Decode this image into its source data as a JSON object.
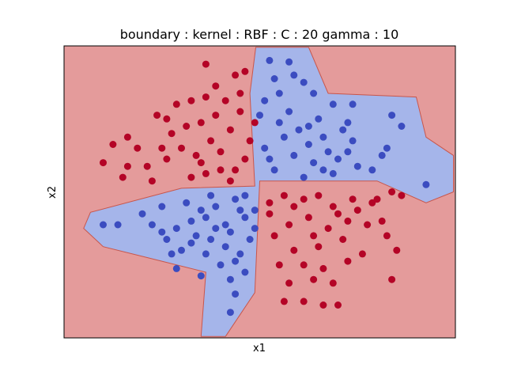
{
  "chart_data": {
    "type": "scatter",
    "title": "boundary : kernel : RBF : C : 20  gamma : 10",
    "xlabel": "x1",
    "ylabel": "x2",
    "xlim": [
      -2.0,
      2.0
    ],
    "ylim": [
      -2.0,
      2.0
    ],
    "grid": false,
    "show_ticks": false,
    "colors": {
      "class_0_point": "#3b4cc0",
      "class_1_point": "#b40426",
      "class_0_region": "#a5b5ea",
      "class_1_region": "#e49b9b",
      "boundary_line": "#c8564c"
    },
    "decision_region_class_0": [
      [
        -0.04,
        1.98
      ],
      [
        0.5,
        1.98
      ],
      [
        0.7,
        1.35
      ],
      [
        1.6,
        1.3
      ],
      [
        1.7,
        0.75
      ],
      [
        1.98,
        0.5
      ],
      [
        1.98,
        0.0
      ],
      [
        1.7,
        -0.15
      ],
      [
        1.2,
        0.15
      ],
      [
        0.0,
        0.15
      ],
      [
        -0.05,
        -1.38
      ],
      [
        -0.35,
        -1.98
      ],
      [
        -0.6,
        -1.98
      ],
      [
        -0.55,
        -1.1
      ],
      [
        -1.15,
        -0.9
      ],
      [
        -1.6,
        -0.75
      ],
      [
        -1.8,
        -0.5
      ],
      [
        -1.73,
        -0.28
      ],
      [
        -0.8,
        0.05
      ],
      [
        -0.05,
        0.08
      ],
      [
        -0.1,
        1.35
      ]
    ],
    "series": [
      {
        "class": 0,
        "points": [
          [
            0.1,
            1.8
          ],
          [
            0.3,
            1.78
          ],
          [
            0.45,
            1.5
          ],
          [
            0.2,
            1.35
          ],
          [
            0.55,
            1.35
          ],
          [
            0.75,
            1.2
          ],
          [
            0.95,
            1.2
          ],
          [
            1.35,
            1.05
          ],
          [
            1.45,
            0.9
          ],
          [
            1.3,
            0.6
          ],
          [
            0.9,
            0.55
          ],
          [
            0.65,
            0.75
          ],
          [
            1.0,
            0.35
          ],
          [
            1.15,
            0.3
          ],
          [
            0.5,
            0.65
          ],
          [
            0.2,
            0.95
          ],
          [
            0.05,
            0.6
          ],
          [
            0.15,
            0.3
          ],
          [
            0.45,
            0.2
          ],
          [
            0.75,
            0.25
          ],
          [
            0.3,
            1.1
          ],
          [
            0.6,
            1.0
          ],
          [
            0.85,
            0.85
          ],
          [
            0.35,
            0.5
          ],
          [
            0.55,
            0.4
          ],
          [
            0.05,
            1.25
          ],
          [
            0.25,
            0.75
          ],
          [
            0.4,
            0.85
          ],
          [
            0.1,
            0.45
          ],
          [
            0.7,
            0.55
          ],
          [
            0.9,
            0.95
          ],
          [
            0.15,
            1.55
          ],
          [
            0.35,
            1.6
          ],
          [
            0.0,
            1.05
          ],
          [
            0.65,
            0.3
          ],
          [
            1.7,
            0.1
          ],
          [
            1.25,
            0.5
          ],
          [
            0.8,
            0.45
          ],
          [
            0.95,
            0.7
          ],
          [
            0.5,
            0.9
          ],
          [
            -1.6,
            -0.45
          ],
          [
            -1.45,
            -0.45
          ],
          [
            -1.2,
            -0.3
          ],
          [
            -1.0,
            -0.2
          ],
          [
            -0.95,
            -0.65
          ],
          [
            -0.85,
            -0.5
          ],
          [
            -0.7,
            -0.4
          ],
          [
            -0.55,
            -0.35
          ],
          [
            -0.45,
            -0.5
          ],
          [
            -0.3,
            -0.55
          ],
          [
            -0.15,
            -0.35
          ],
          [
            -0.05,
            -0.25
          ],
          [
            -0.25,
            -0.1
          ],
          [
            -0.5,
            -0.05
          ],
          [
            -0.75,
            -0.15
          ],
          [
            -0.35,
            -0.75
          ],
          [
            -0.2,
            -0.85
          ],
          [
            -0.55,
            -0.85
          ],
          [
            -0.4,
            -1.0
          ],
          [
            -0.8,
            -0.8
          ],
          [
            -0.25,
            -1.4
          ],
          [
            -0.3,
            -1.65
          ],
          [
            -0.85,
            -1.05
          ],
          [
            -0.9,
            -0.85
          ],
          [
            -1.1,
            -0.45
          ],
          [
            -0.65,
            -0.6
          ],
          [
            -0.1,
            -0.65
          ],
          [
            -0.05,
            -0.5
          ],
          [
            -0.45,
            -0.2
          ],
          [
            -0.2,
            -0.25
          ],
          [
            -0.6,
            -0.25
          ],
          [
            -0.15,
            -0.05
          ],
          [
            -0.35,
            -0.45
          ],
          [
            -1.0,
            -0.55
          ],
          [
            -0.7,
            -0.7
          ],
          [
            -0.15,
            -1.1
          ],
          [
            -0.3,
            -1.2
          ],
          [
            -0.6,
            -1.15
          ],
          [
            -0.5,
            -0.65
          ],
          [
            -0.25,
            -0.95
          ]
        ]
      },
      {
        "class": 1,
        "points": [
          [
            -1.35,
            0.75
          ],
          [
            -1.25,
            0.6
          ],
          [
            -1.05,
            1.05
          ],
          [
            -0.95,
            1.0
          ],
          [
            -0.7,
            1.25
          ],
          [
            -0.55,
            1.3
          ],
          [
            -0.35,
            1.25
          ],
          [
            -0.2,
            1.35
          ],
          [
            -0.55,
            1.75
          ],
          [
            -0.25,
            1.6
          ],
          [
            -0.45,
            1.45
          ],
          [
            -0.6,
            0.95
          ],
          [
            -0.5,
            0.7
          ],
          [
            -0.8,
            0.6
          ],
          [
            -0.95,
            0.45
          ],
          [
            -1.15,
            0.35
          ],
          [
            -1.35,
            0.35
          ],
          [
            -1.5,
            0.65
          ],
          [
            -1.6,
            0.4
          ],
          [
            -0.3,
            0.85
          ],
          [
            -0.15,
            0.45
          ],
          [
            -0.4,
            0.3
          ],
          [
            -0.7,
            0.2
          ],
          [
            -1.4,
            0.2
          ],
          [
            -0.05,
            0.95
          ],
          [
            -0.9,
            0.8
          ],
          [
            -0.65,
            0.5
          ],
          [
            -0.2,
            1.1
          ],
          [
            -0.4,
            0.55
          ],
          [
            -0.55,
            0.25
          ],
          [
            -1.1,
            0.15
          ],
          [
            -0.25,
            0.3
          ],
          [
            -0.75,
            0.9
          ],
          [
            -1.0,
            0.6
          ],
          [
            -0.1,
            0.7
          ],
          [
            -0.85,
            1.2
          ],
          [
            -0.45,
            1.05
          ],
          [
            -0.3,
            0.15
          ],
          [
            -0.6,
            0.4
          ],
          [
            -0.15,
            1.65
          ],
          [
            0.1,
            -0.15
          ],
          [
            0.25,
            -0.05
          ],
          [
            0.45,
            -0.1
          ],
          [
            0.6,
            -0.05
          ],
          [
            0.75,
            -0.2
          ],
          [
            0.95,
            -0.1
          ],
          [
            1.15,
            -0.15
          ],
          [
            1.35,
            0.0
          ],
          [
            1.45,
            -0.05
          ],
          [
            0.9,
            -0.4
          ],
          [
            0.7,
            -0.5
          ],
          [
            0.5,
            -0.35
          ],
          [
            0.3,
            -0.45
          ],
          [
            0.15,
            -0.6
          ],
          [
            0.35,
            -0.8
          ],
          [
            0.6,
            -0.75
          ],
          [
            0.85,
            -0.65
          ],
          [
            1.1,
            -0.45
          ],
          [
            1.3,
            -0.6
          ],
          [
            1.25,
            -0.4
          ],
          [
            0.2,
            -1.0
          ],
          [
            0.45,
            -1.0
          ],
          [
            0.65,
            -1.05
          ],
          [
            0.9,
            -0.95
          ],
          [
            1.05,
            -0.85
          ],
          [
            1.4,
            -0.8
          ],
          [
            0.3,
            -1.25
          ],
          [
            0.55,
            -1.2
          ],
          [
            0.75,
            -1.25
          ],
          [
            1.35,
            -1.2
          ],
          [
            0.25,
            -1.5
          ],
          [
            0.45,
            -1.5
          ],
          [
            0.65,
            -1.55
          ],
          [
            0.8,
            -1.55
          ],
          [
            0.1,
            -0.3
          ],
          [
            1.0,
            -0.25
          ],
          [
            0.55,
            -0.6
          ],
          [
            0.35,
            -0.2
          ],
          [
            0.8,
            -0.3
          ],
          [
            1.2,
            -0.1
          ]
        ]
      }
    ]
  }
}
